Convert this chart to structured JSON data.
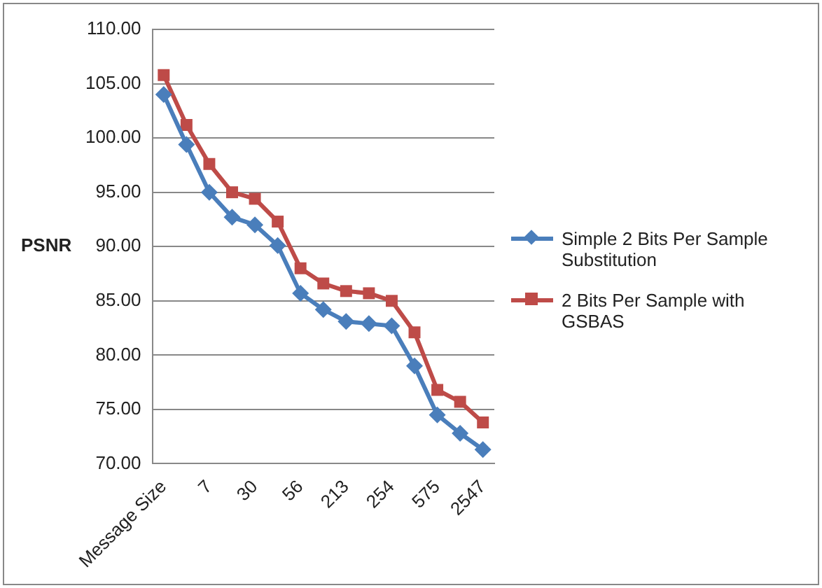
{
  "chart_data": {
    "type": "line",
    "ylabel": "PSNR",
    "categories": [
      "Message Size",
      null,
      "7",
      null,
      "30",
      null,
      "56",
      null,
      "213",
      null,
      "254",
      null,
      "575",
      null,
      "2547"
    ],
    "series": [
      {
        "name": "Simple 2 Bits Per Sample Substitution",
        "color": "#4a7ebb",
        "marker": "diamond",
        "values": [
          104.0,
          99.4,
          95.0,
          92.7,
          92.0,
          90.1,
          85.7,
          84.2,
          83.1,
          82.9,
          82.7,
          79.0,
          74.5,
          72.8,
          71.3
        ]
      },
      {
        "name": "2 Bits Per Sample with GSBAS",
        "color": "#be4b48",
        "marker": "square",
        "values": [
          105.8,
          101.2,
          97.6,
          95.0,
          94.4,
          92.3,
          88.0,
          86.6,
          85.9,
          85.7,
          85.0,
          82.1,
          76.8,
          75.7,
          73.8
        ]
      }
    ],
    "ylim": [
      70,
      110
    ],
    "yticks": [
      {
        "value": 70,
        "label": "70.00"
      },
      {
        "value": 75,
        "label": "75.00"
      },
      {
        "value": 80,
        "label": "80.00"
      },
      {
        "value": 85,
        "label": "85.00"
      },
      {
        "value": 90,
        "label": "90.00"
      },
      {
        "value": 95,
        "label": "95.00"
      },
      {
        "value": 100,
        "label": "100.00"
      },
      {
        "value": 105,
        "label": "105.00"
      },
      {
        "value": 110,
        "label": "110.00"
      }
    ],
    "grid": "y",
    "legend": "right"
  }
}
